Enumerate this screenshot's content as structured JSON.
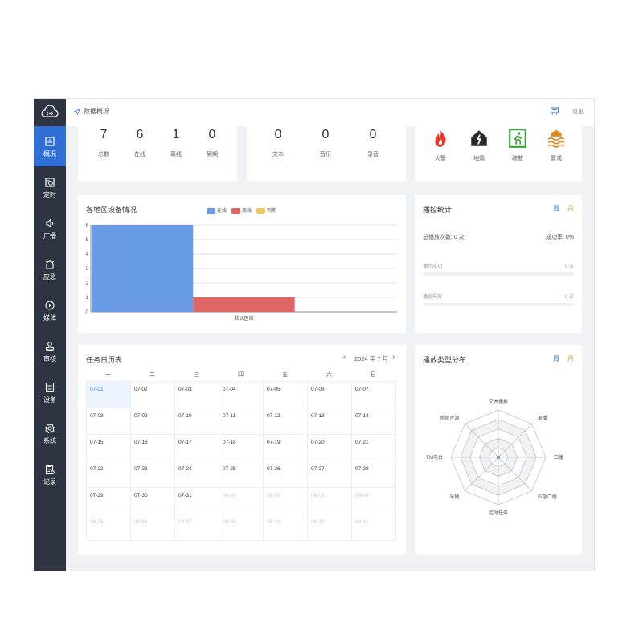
{
  "sidebar": {
    "items": [
      {
        "label": "概况",
        "icon": "overview-icon",
        "active": true
      },
      {
        "label": "定时",
        "icon": "timer-icon"
      },
      {
        "label": "广播",
        "icon": "speaker-icon"
      },
      {
        "label": "应急",
        "icon": "emergency-icon"
      },
      {
        "label": "媒体",
        "icon": "media-play-icon"
      },
      {
        "label": "审核",
        "icon": "stamp-icon"
      },
      {
        "label": "设备",
        "icon": "device-icon"
      },
      {
        "label": "系统",
        "icon": "gear-icon"
      },
      {
        "label": "记录",
        "icon": "record-icon"
      }
    ]
  },
  "header": {
    "breadcrumb": "数据概况",
    "exit_label": "退出"
  },
  "device_stats": [
    {
      "value": "7",
      "label": "总数"
    },
    {
      "value": "6",
      "label": "在线"
    },
    {
      "value": "1",
      "label": "离线"
    },
    {
      "value": "0",
      "label": "到期"
    }
  ],
  "media_stats": [
    {
      "value": "0",
      "label": "文本"
    },
    {
      "value": "0",
      "label": "音乐"
    },
    {
      "value": "0",
      "label": "录音"
    }
  ],
  "alerts": [
    {
      "label": "火警",
      "icon": "fire-icon",
      "color": "#e8392e"
    },
    {
      "label": "地震",
      "icon": "earthquake-icon",
      "color": "#2b2b2b"
    },
    {
      "label": "疏散",
      "icon": "evacuation-icon",
      "color": "#3aa63a"
    },
    {
      "label": "警戒",
      "icon": "flood-icon",
      "color": "#e08a1e"
    }
  ],
  "region_chart": {
    "title": "各地区设备情况",
    "chart_data": {
      "type": "bar",
      "categories": [
        "默认区域"
      ],
      "series": [
        {
          "name": "在线",
          "values": [
            6
          ],
          "color": "#6a9be6"
        },
        {
          "name": "离线",
          "values": [
            1
          ],
          "color": "#e06666"
        },
        {
          "name": "到期",
          "values": [
            0
          ],
          "color": "#f0c75a"
        }
      ],
      "yticks": [
        "0",
        "1",
        "2",
        "3",
        "4",
        "5",
        "6"
      ],
      "ylim": [
        0,
        6
      ]
    }
  },
  "play_stats": {
    "title": "播控统计",
    "week_label": "周",
    "month_label": "月",
    "total_label": "总播放次数: 0 次",
    "rate_label": "成功率: 0%",
    "success_label": "播控成功",
    "success_value": "0 次",
    "fail_label": "播控失败",
    "fail_value": "0 次"
  },
  "calendar": {
    "title": "任务日历表",
    "month_label": "2024 年 7 月",
    "prev": "‹",
    "next": "›",
    "weekdays": [
      "一",
      "二",
      "三",
      "四",
      "五",
      "六",
      "日"
    ],
    "days": [
      [
        "07-01",
        "07-02",
        "07-03",
        "07-04",
        "07-05",
        "07-06",
        "07-07"
      ],
      [
        "07-08",
        "07-09",
        "07-10",
        "07-11",
        "07-12",
        "07-13",
        "07-14"
      ],
      [
        "07-15",
        "07-16",
        "07-17",
        "07-18",
        "07-19",
        "07-20",
        "07-21"
      ],
      [
        "07-22",
        "07-23",
        "07-24",
        "07-25",
        "07-26",
        "07-27",
        "07-28"
      ],
      [
        "07-29",
        "07-30",
        "07-31",
        "08-01",
        "08-02",
        "08-03",
        "08-04"
      ],
      [
        "08-05",
        "08-06",
        "08-07",
        "08-08",
        "08-09",
        "08-10",
        "08-11"
      ]
    ],
    "today": "07-01"
  },
  "play_types": {
    "title": "播放类型分布",
    "week_label": "周",
    "month_label": "月",
    "chart_data": {
      "type": "radar",
      "axes": [
        "文本播报",
        "录播",
        "口播",
        "应急广播",
        "定时任务",
        "采播",
        "FM电台",
        "系统音源"
      ],
      "values": [
        0,
        0,
        0,
        0,
        0,
        0,
        0,
        0
      ]
    }
  }
}
